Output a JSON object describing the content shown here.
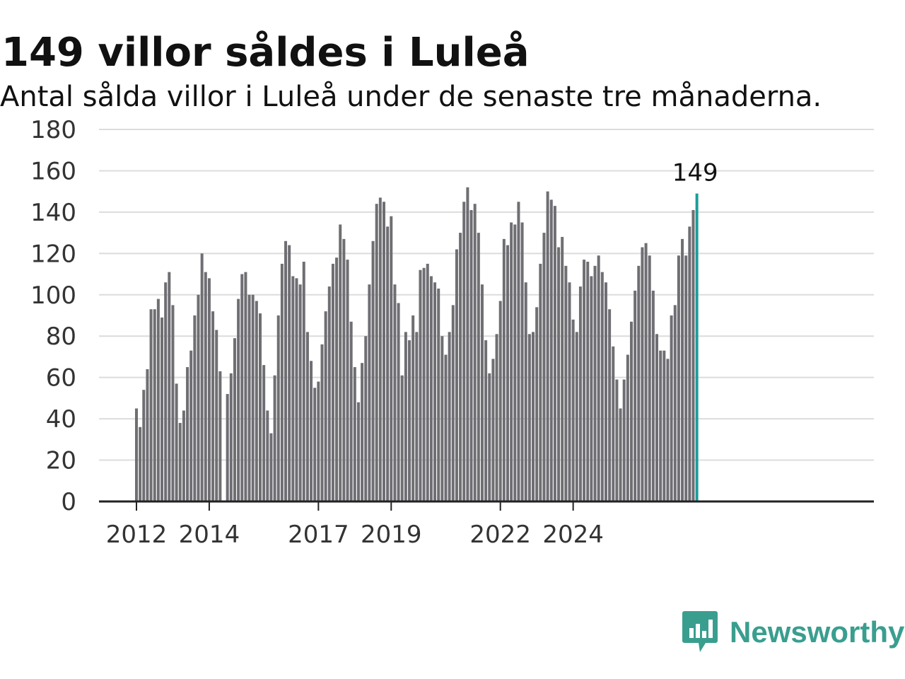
{
  "title": "149 villor såldes i Luleå",
  "subtitle": "Antal sålda villor i Luleå under de senaste tre månaderna.",
  "brand": {
    "name": "Newsworthy",
    "icon": "newsworthy-chart-bubble-icon"
  },
  "colors": {
    "bar": "#6e6e73",
    "highlight": "#1a9e99",
    "brand": "#3a9e8f",
    "grid": "#dcdcdc",
    "axis": "#222222"
  },
  "chart_data": {
    "type": "bar",
    "ylim": [
      0,
      180
    ],
    "yticks": [
      0,
      20,
      40,
      60,
      80,
      100,
      120,
      140,
      160,
      180
    ],
    "grid": true,
    "xtick_labels": [
      {
        "label": "2012",
        "index": 0
      },
      {
        "label": "2014",
        "index": 20
      },
      {
        "label": "2017",
        "index": 50
      },
      {
        "label": "2019",
        "index": 70
      },
      {
        "label": "2022",
        "index": 100
      },
      {
        "label": "2024",
        "index": 120
      }
    ],
    "highlight_label": "149",
    "values": [
      45,
      36,
      54,
      64,
      93,
      93,
      98,
      89,
      106,
      111,
      95,
      57,
      38,
      44,
      65,
      73,
      90,
      100,
      120,
      111,
      108,
      92,
      83,
      63,
      0,
      52,
      62,
      79,
      98,
      110,
      111,
      100,
      100,
      97,
      91,
      66,
      44,
      33,
      61,
      90,
      115,
      126,
      124,
      109,
      108,
      105,
      116,
      82,
      68,
      55,
      58,
      76,
      92,
      104,
      115,
      118,
      134,
      127,
      117,
      87,
      65,
      48,
      67,
      80,
      105,
      126,
      144,
      147,
      145,
      133,
      138,
      105,
      96,
      61,
      82,
      78,
      90,
      82,
      112,
      113,
      115,
      109,
      106,
      103,
      80,
      71,
      82,
      95,
      122,
      130,
      145,
      152,
      141,
      144,
      130,
      105,
      78,
      62,
      69,
      81,
      97,
      127,
      124,
      135,
      134,
      145,
      135,
      106,
      81,
      82,
      94,
      115,
      130,
      150,
      146,
      143,
      123,
      128,
      114,
      106,
      88,
      82,
      104,
      117,
      116,
      109,
      114,
      119,
      111,
      106,
      93,
      75,
      59,
      45,
      59,
      71,
      87,
      102,
      114,
      123,
      125,
      119,
      102,
      81,
      73,
      73,
      69,
      90,
      95,
      119,
      127,
      119,
      133,
      141,
      149
    ]
  }
}
